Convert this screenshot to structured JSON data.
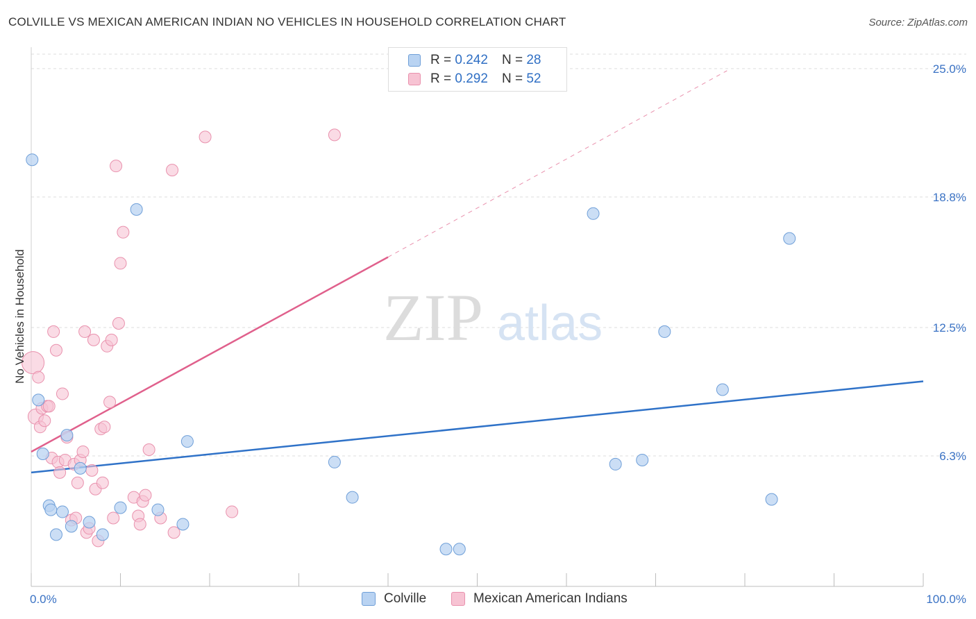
{
  "title": "COLVILLE VS MEXICAN AMERICAN INDIAN NO VEHICLES IN HOUSEHOLD CORRELATION CHART",
  "source": "Source: ZipAtlas.com",
  "watermark": {
    "zip": "ZIP",
    "atlas": "atlas"
  },
  "colors": {
    "blue_fill": "#b9d3f2",
    "blue_stroke": "#6f9fd8",
    "blue_line": "#2f72c8",
    "pink_fill": "#f7c3d3",
    "pink_stroke": "#e991ad",
    "pink_line": "#e0608c",
    "grid": "#dddddd",
    "axis_label": "#3a72c4"
  },
  "legend": {
    "rows": [
      {
        "r_label": "R = ",
        "r_value": "0.242",
        "n_label": "N = ",
        "n_value": "28"
      },
      {
        "r_label": "R = ",
        "r_value": "0.292",
        "n_label": "N = ",
        "n_value": "52"
      }
    ]
  },
  "bottom_legend": [
    "Colville",
    "Mexican American Indians"
  ],
  "chart_data": {
    "type": "scatter",
    "title": "COLVILLE VS MEXICAN AMERICAN INDIAN NO VEHICLES IN HOUSEHOLD CORRELATION CHART",
    "xlabel": "",
    "ylabel": "No Vehicles in Household",
    "xlim": [
      0,
      100
    ],
    "ylim": [
      0,
      25.7
    ],
    "x_tick_labels": [
      {
        "value": 0,
        "label": "0.0%"
      },
      {
        "value": 100,
        "label": "100.0%"
      }
    ],
    "y_tick_labels": [
      {
        "value": 6.3,
        "label": "6.3%"
      },
      {
        "value": 12.5,
        "label": "12.5%"
      },
      {
        "value": 18.8,
        "label": "18.8%"
      },
      {
        "value": 25.0,
        "label": "25.0%"
      }
    ],
    "series": [
      {
        "name": "Colville",
        "R": 0.242,
        "N": 28,
        "trend": {
          "x0": 0,
          "y0": 5.5,
          "x1": 100,
          "y1": 9.9,
          "dashed_extension": false
        },
        "points": [
          [
            0.1,
            20.6
          ],
          [
            0.8,
            9.0
          ],
          [
            1.3,
            6.4
          ],
          [
            2.0,
            3.9
          ],
          [
            2.2,
            3.7
          ],
          [
            2.8,
            2.5
          ],
          [
            3.5,
            3.6
          ],
          [
            4.0,
            7.3
          ],
          [
            4.5,
            2.9
          ],
          [
            5.5,
            5.7
          ],
          [
            6.5,
            3.1
          ],
          [
            8.0,
            2.5
          ],
          [
            10.0,
            3.8
          ],
          [
            11.8,
            18.2
          ],
          [
            14.2,
            3.7
          ],
          [
            17.0,
            3.0
          ],
          [
            17.5,
            7.0
          ],
          [
            34.0,
            6.0
          ],
          [
            36.0,
            4.3
          ],
          [
            46.5,
            1.8
          ],
          [
            48.0,
            1.8
          ],
          [
            63.0,
            18.0
          ],
          [
            65.5,
            5.9
          ],
          [
            68.5,
            6.1
          ],
          [
            71.0,
            12.3
          ],
          [
            77.5,
            9.5
          ],
          [
            83.0,
            4.2
          ],
          [
            85.0,
            16.8
          ]
        ]
      },
      {
        "name": "Mexican American Indians",
        "R": 0.292,
        "N": 52,
        "trend": {
          "x0": 0,
          "y0": 6.5,
          "x1": 40,
          "y1": 15.9,
          "dash_x1": 78,
          "dash_y1": 24.9
        },
        "points": [
          [
            0.2,
            10.8
          ],
          [
            0.5,
            8.2
          ],
          [
            0.8,
            10.1
          ],
          [
            1.0,
            7.7
          ],
          [
            1.2,
            8.6
          ],
          [
            1.5,
            8.0
          ],
          [
            1.8,
            8.7
          ],
          [
            2.0,
            8.7
          ],
          [
            2.3,
            6.2
          ],
          [
            2.5,
            12.3
          ],
          [
            2.8,
            11.4
          ],
          [
            3.0,
            6.0
          ],
          [
            3.2,
            5.5
          ],
          [
            3.5,
            9.3
          ],
          [
            3.8,
            6.1
          ],
          [
            4.0,
            7.2
          ],
          [
            4.5,
            3.2
          ],
          [
            4.8,
            5.9
          ],
          [
            5.0,
            3.3
          ],
          [
            5.2,
            5.0
          ],
          [
            5.5,
            6.1
          ],
          [
            5.8,
            6.5
          ],
          [
            6.0,
            12.3
          ],
          [
            6.2,
            2.6
          ],
          [
            6.5,
            2.8
          ],
          [
            6.8,
            5.6
          ],
          [
            7.0,
            11.9
          ],
          [
            7.2,
            4.7
          ],
          [
            7.5,
            2.2
          ],
          [
            7.8,
            7.6
          ],
          [
            8.0,
            5.0
          ],
          [
            8.2,
            7.7
          ],
          [
            8.5,
            11.6
          ],
          [
            8.8,
            8.9
          ],
          [
            9.0,
            11.9
          ],
          [
            9.2,
            3.3
          ],
          [
            9.5,
            20.3
          ],
          [
            9.8,
            12.7
          ],
          [
            10.0,
            15.6
          ],
          [
            10.3,
            17.1
          ],
          [
            11.5,
            4.3
          ],
          [
            12.0,
            3.4
          ],
          [
            12.2,
            3.0
          ],
          [
            12.5,
            4.1
          ],
          [
            12.8,
            4.4
          ],
          [
            13.2,
            6.6
          ],
          [
            14.5,
            3.3
          ],
          [
            15.8,
            20.1
          ],
          [
            16.0,
            2.6
          ],
          [
            19.5,
            21.7
          ],
          [
            22.5,
            3.6
          ],
          [
            34.0,
            21.8
          ]
        ]
      }
    ]
  }
}
